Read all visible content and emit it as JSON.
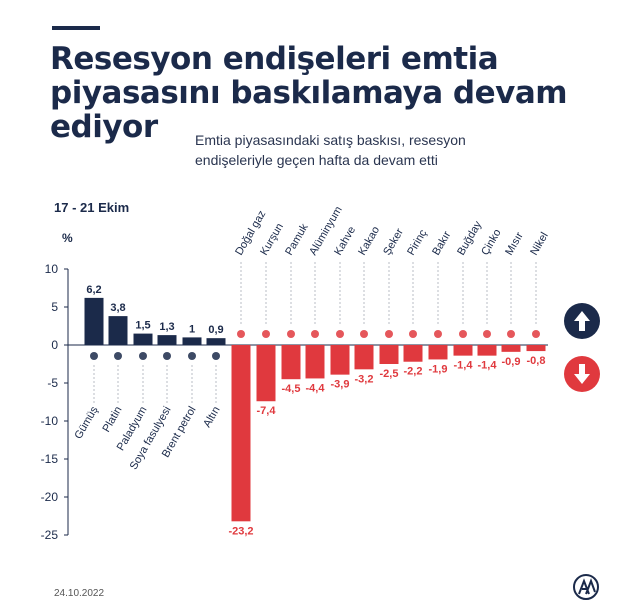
{
  "header": {
    "title_lines": [
      "Resesyon endişeleri emtia",
      "piyasasını baskılamaya devam",
      "ediyor"
    ],
    "subtitle": "Emtia piyasasındaki satış baskısı, resesyon endişeleriyle geçen hafta da devam etti",
    "period": "17 - 21 Ekim"
  },
  "footer": {
    "date": "24.10.2022"
  },
  "colors": {
    "positive": "#1b2a4a",
    "negative": "#e0393e",
    "grid": "#cfd3da"
  },
  "chart_data": {
    "type": "bar",
    "unit_label": "%",
    "ylim": [
      -25,
      10
    ],
    "yticks": [
      10,
      5,
      0,
      -5,
      -10,
      -15,
      -20,
      -25
    ],
    "categories": [
      "Gümüş",
      "Platin",
      "Paladyum",
      "Soya fasulyesi",
      "Brent petrol",
      "Altın",
      "Doğal gaz",
      "Kurşun",
      "Pamuk",
      "Alüminyum",
      "Kahve",
      "Kakao",
      "Şeker",
      "Pirinç",
      "Bakır",
      "Buğday",
      "Çinko",
      "Mısır",
      "Nikel"
    ],
    "values": [
      6.2,
      3.8,
      1.5,
      1.3,
      1.0,
      0.9,
      -23.2,
      -7.4,
      -4.5,
      -4.4,
      -3.9,
      -3.2,
      -2.5,
      -2.2,
      -1.9,
      -1.4,
      -1.4,
      -0.9,
      -0.8
    ],
    "value_labels": [
      "6,2",
      "3,8",
      "1,5",
      "1,3",
      "1",
      "0,9",
      "-23,2",
      "-7,4",
      "-4,5",
      "-4,4",
      "-3,9",
      "-3,2",
      "-2,5",
      "-2,2",
      "-1,9",
      "-1,4",
      "-1,4",
      "-0,9",
      "-0,8"
    ],
    "yticklabels": [
      "10",
      "5",
      "0",
      "-5",
      "-10",
      "-15",
      "-20",
      "-25"
    ],
    "grid": false,
    "legend": "none",
    "icons": [
      "up-arrow-icon",
      "down-arrow-icon"
    ]
  }
}
